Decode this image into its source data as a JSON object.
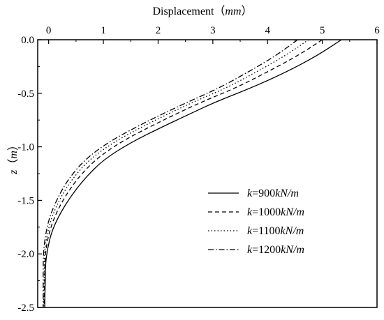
{
  "chart_data": {
    "type": "line",
    "xlabel": {
      "text": "Displacement",
      "unit": "mm",
      "open": "（",
      "close": "）"
    },
    "ylabel": {
      "symbol": "z",
      "unit": "m",
      "open": "（",
      "close": "）"
    },
    "x_axis_position": "top",
    "xlim": [
      -0.2,
      6
    ],
    "ylim": [
      -2.5,
      0
    ],
    "x_ticks": [
      0,
      1,
      2,
      3,
      4,
      5,
      6
    ],
    "x_tick_labels": [
      "0",
      "1",
      "2",
      "3",
      "4",
      "5",
      "6"
    ],
    "y_ticks": [
      0,
      -0.5,
      -1.0,
      -1.5,
      -2.0,
      -2.5
    ],
    "y_tick_labels": [
      "0.0",
      "-0.5",
      "-1.0",
      "-1.5",
      "-2.0",
      "-2.5"
    ],
    "grid": false,
    "legend_position": "right",
    "series": [
      {
        "label_k": "k",
        "label_eq": "=",
        "label_val": "900",
        "label_unit": "kN/m",
        "dash": "solid",
        "x": [
          5.35,
          4.9,
          4.35,
          3.7,
          3.05,
          2.55,
          2.05,
          1.5,
          1.0,
          0.65,
          0.38,
          0.18,
          0.05,
          -0.02,
          -0.06,
          -0.06,
          -0.07,
          -0.07
        ],
        "y": [
          0.0,
          -0.15,
          -0.3,
          -0.45,
          -0.58,
          -0.7,
          -0.82,
          -0.96,
          -1.12,
          -1.3,
          -1.48,
          -1.65,
          -1.8,
          -1.95,
          -2.1,
          -2.25,
          -2.4,
          -2.5
        ]
      },
      {
        "label_k": "k",
        "label_eq": "=",
        "label_val": "1000",
        "label_unit": "kN/m",
        "dash": "dashed",
        "x": [
          5.0,
          4.55,
          4.0,
          3.42,
          2.8,
          2.3,
          1.82,
          1.3,
          0.85,
          0.52,
          0.28,
          0.11,
          0.01,
          -0.05,
          -0.07,
          -0.07,
          -0.08,
          -0.08
        ],
        "y": [
          0.0,
          -0.15,
          -0.3,
          -0.45,
          -0.58,
          -0.7,
          -0.82,
          -0.96,
          -1.12,
          -1.3,
          -1.48,
          -1.65,
          -1.8,
          -1.95,
          -2.1,
          -2.25,
          -2.4,
          -2.5
        ]
      },
      {
        "label_k": "k",
        "label_eq": "=",
        "label_val": "1100",
        "label_unit": "kN/m",
        "dash": "dotted",
        "x": [
          4.75,
          4.32,
          3.8,
          3.25,
          2.65,
          2.15,
          1.68,
          1.18,
          0.74,
          0.43,
          0.21,
          0.06,
          -0.02,
          -0.07,
          -0.08,
          -0.08,
          -0.09,
          -0.09
        ],
        "y": [
          0.0,
          -0.15,
          -0.3,
          -0.45,
          -0.58,
          -0.7,
          -0.82,
          -0.96,
          -1.12,
          -1.3,
          -1.48,
          -1.65,
          -1.8,
          -1.95,
          -2.1,
          -2.25,
          -2.4,
          -2.5
        ]
      },
      {
        "label_k": "k",
        "label_eq": "=",
        "label_val": "1200",
        "label_unit": "kN/m",
        "dash": "dashdot",
        "x": [
          4.55,
          4.15,
          3.65,
          3.12,
          2.55,
          2.05,
          1.58,
          1.08,
          0.66,
          0.36,
          0.16,
          0.02,
          -0.05,
          -0.09,
          -0.1,
          -0.1,
          -0.1,
          -0.1
        ],
        "y": [
          0.0,
          -0.15,
          -0.3,
          -0.45,
          -0.58,
          -0.7,
          -0.82,
          -0.96,
          -1.12,
          -1.3,
          -1.48,
          -1.65,
          -1.8,
          -1.95,
          -2.1,
          -2.25,
          -2.4,
          -2.5
        ]
      }
    ]
  }
}
